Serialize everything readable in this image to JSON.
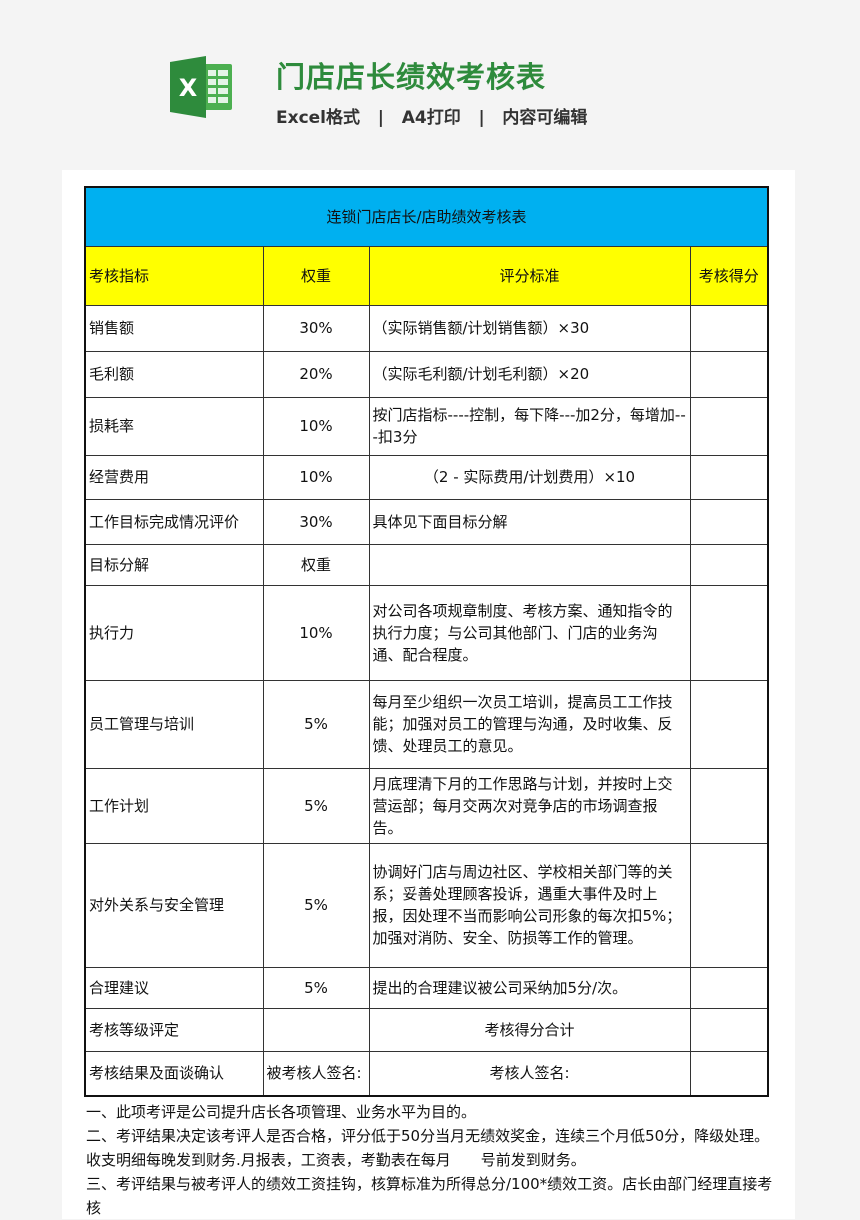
{
  "header": {
    "title": "门店店长绩效考核表",
    "subtitle": "Excel格式   |   A4打印   |   内容可编辑"
  },
  "table": {
    "title": "连锁门店店长/店助绩效考核表",
    "columns": [
      "考核指标",
      "权重",
      "评分标准",
      "考核得分"
    ],
    "rows": [
      {
        "metric": "销售额",
        "weight": "30%",
        "criteria": "（实际销售额/计划销售额）×30",
        "score": ""
      },
      {
        "metric": "毛利额",
        "weight": "20%",
        "criteria": "（实际毛利额/计划毛利额）×20",
        "score": ""
      },
      {
        "metric": "损耗率",
        "weight": "10%",
        "criteria": "按门店指标----控制，每下降---加2分，每增加---扣3分",
        "score": ""
      },
      {
        "metric": "经营费用",
        "weight": "10%",
        "criteria": "（2 - 实际费用/计划费用）×10",
        "score": ""
      },
      {
        "metric": "工作目标完成情况评价",
        "weight": "30%",
        "criteria": "具体见下面目标分解",
        "score": ""
      },
      {
        "metric": "目标分解",
        "weight": "权重",
        "criteria": "",
        "score": ""
      },
      {
        "metric": "执行力",
        "weight": "10%",
        "criteria": "对公司各项规章制度、考核方案、通知指令的执行力度；与公司其他部门、门店的业务沟通、配合程度。",
        "score": ""
      },
      {
        "metric": "员工管理与培训",
        "weight": "5%",
        "criteria": "每月至少组织一次员工培训，提高员工工作技能；加强对员工的管理与沟通，及时收集、反馈、处理员工的意见。",
        "score": ""
      },
      {
        "metric": "工作计划",
        "weight": "5%",
        "criteria": "月底理清下月的工作思路与计划，并按时上交营运部；每月交两次对竞争店的市场调查报告。",
        "score": ""
      },
      {
        "metric": "对外关系与安全管理",
        "weight": "5%",
        "criteria": "协调好门店与周边社区、学校相关部门等的关系；妥善处理顾客投诉，遇重大事件及时上报，因处理不当而影响公司形象的每次扣5%；加强对消防、安全、防损等工作的管理。",
        "score": ""
      },
      {
        "metric": "合理建议",
        "weight": "5%",
        "criteria": "提出的合理建议被公司采纳加5分/次。",
        "score": ""
      }
    ],
    "grade_label": "考核等级评定",
    "total_label": "考核得分合计",
    "confirm_label": "考核结果及面谈确认",
    "assessee_sign": "被考核人签名:",
    "assessor_sign": "考核人签名:"
  },
  "notes": [
    "一、此项考评是公司提升店长各项管理、业务水平为目的。",
    "二、考评结果决定该考评人是否合格，评分低于50分当月无绩效奖金，连续三个月低50分，降级处理。收支明细每晚发到财务.月报表，工资表，考勤表在每月　　号前发到财务。",
    "三、考评结果与被考评人的绩效工资挂钩，核算标准为所得总分/100*绩效工资。店长由部门经理直接考核"
  ],
  "colors": {
    "brand": "#2e8b3c",
    "header_bg": "#00b0f0",
    "column_header_bg": "#ffff00"
  }
}
